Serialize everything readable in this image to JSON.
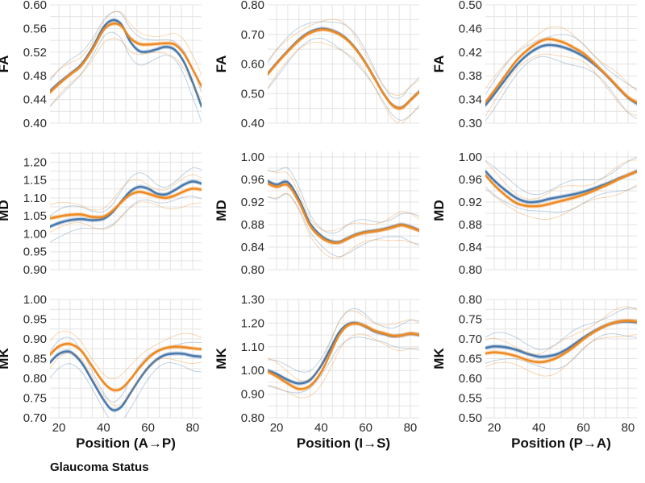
{
  "legend": {
    "title": "Glaucoma Status"
  },
  "colors": {
    "series_a": "#4a7aad",
    "series_b": "#ef8a22",
    "grid": "#e3e3e3"
  },
  "chart_data": [
    {
      "type": "line",
      "ylabel": "FA",
      "xlabel": "",
      "ylim": [
        0.4,
        0.6
      ],
      "yticks": [
        "0.40",
        "0.44",
        "0.48",
        "0.52",
        "0.56",
        "0.60"
      ],
      "xlim": [
        16,
        84
      ],
      "x": [
        16,
        20,
        25,
        30,
        35,
        40,
        44,
        48,
        52,
        56,
        60,
        64,
        68,
        72,
        76,
        80,
        84
      ],
      "series": [
        {
          "values": [
            0.454,
            0.468,
            0.483,
            0.499,
            0.527,
            0.562,
            0.574,
            0.567,
            0.538,
            0.522,
            0.521,
            0.525,
            0.529,
            0.524,
            0.504,
            0.469,
            0.428
          ]
        },
        {
          "values": [
            0.452,
            0.466,
            0.482,
            0.497,
            0.524,
            0.557,
            0.568,
            0.564,
            0.544,
            0.534,
            0.533,
            0.534,
            0.535,
            0.533,
            0.518,
            0.491,
            0.462
          ]
        }
      ]
    },
    {
      "type": "line",
      "ylabel": "FA",
      "xlabel": "",
      "ylim": [
        0.4,
        0.8
      ],
      "yticks": [
        "0.40",
        "0.50",
        "0.60",
        "0.70",
        "0.80"
      ],
      "xlim": [
        16,
        84
      ],
      "x": [
        16,
        20,
        25,
        30,
        35,
        40,
        44,
        48,
        52,
        56,
        60,
        64,
        68,
        72,
        76,
        80,
        84
      ],
      "series": [
        {
          "values": [
            0.567,
            0.603,
            0.644,
            0.682,
            0.708,
            0.719,
            0.715,
            0.703,
            0.681,
            0.647,
            0.603,
            0.552,
            0.5,
            0.461,
            0.452,
            0.478,
            0.507
          ]
        },
        {
          "values": [
            0.565,
            0.601,
            0.642,
            0.679,
            0.705,
            0.716,
            0.713,
            0.701,
            0.679,
            0.645,
            0.601,
            0.55,
            0.499,
            0.46,
            0.451,
            0.477,
            0.506
          ]
        }
      ]
    },
    {
      "type": "line",
      "ylabel": "FA",
      "xlabel": "",
      "ylim": [
        0.3,
        0.5
      ],
      "yticks": [
        "0.30",
        "0.34",
        "0.38",
        "0.42",
        "0.46",
        "0.50"
      ],
      "xlim": [
        16,
        84
      ],
      "x": [
        16,
        20,
        25,
        30,
        35,
        40,
        44,
        48,
        52,
        56,
        60,
        64,
        68,
        72,
        76,
        80,
        84
      ],
      "series": [
        {
          "values": [
            0.33,
            0.349,
            0.374,
            0.398,
            0.416,
            0.428,
            0.432,
            0.431,
            0.427,
            0.421,
            0.413,
            0.402,
            0.389,
            0.374,
            0.358,
            0.343,
            0.333
          ]
        },
        {
          "values": [
            0.335,
            0.355,
            0.381,
            0.406,
            0.424,
            0.437,
            0.442,
            0.44,
            0.435,
            0.427,
            0.418,
            0.405,
            0.39,
            0.375,
            0.359,
            0.344,
            0.335
          ]
        }
      ]
    },
    {
      "type": "line",
      "ylabel": "MD",
      "xlabel": "",
      "ylim": [
        0.9,
        1.23
      ],
      "yticks": [
        "0.90",
        "0.95",
        "1.00",
        "1.05",
        "1.10",
        "1.15",
        "1.20"
      ],
      "xlim": [
        16,
        84
      ],
      "x": [
        16,
        20,
        25,
        30,
        35,
        40,
        44,
        48,
        52,
        56,
        60,
        64,
        68,
        72,
        76,
        80,
        84
      ],
      "series": [
        {
          "values": [
            1.02,
            1.03,
            1.038,
            1.041,
            1.038,
            1.042,
            1.06,
            1.09,
            1.118,
            1.131,
            1.126,
            1.112,
            1.11,
            1.122,
            1.137,
            1.146,
            1.14
          ]
        },
        {
          "values": [
            1.043,
            1.048,
            1.053,
            1.054,
            1.047,
            1.048,
            1.064,
            1.088,
            1.109,
            1.117,
            1.112,
            1.104,
            1.1,
            1.107,
            1.118,
            1.126,
            1.123
          ]
        }
      ]
    },
    {
      "type": "line",
      "ylabel": "MD",
      "xlabel": "",
      "ylim": [
        0.8,
        1.01
      ],
      "yticks": [
        "0.80",
        "0.84",
        "0.88",
        "0.92",
        "0.96",
        "1.00"
      ],
      "xlim": [
        16,
        84
      ],
      "x": [
        16,
        20,
        25,
        30,
        35,
        40,
        44,
        48,
        52,
        56,
        60,
        64,
        68,
        72,
        76,
        80,
        84
      ],
      "series": [
        {
          "values": [
            0.957,
            0.951,
            0.955,
            0.925,
            0.882,
            0.86,
            0.851,
            0.849,
            0.856,
            0.863,
            0.867,
            0.869,
            0.872,
            0.876,
            0.88,
            0.876,
            0.87
          ]
        },
        {
          "values": [
            0.953,
            0.947,
            0.95,
            0.92,
            0.878,
            0.857,
            0.849,
            0.848,
            0.855,
            0.862,
            0.866,
            0.868,
            0.871,
            0.875,
            0.879,
            0.875,
            0.869
          ]
        }
      ]
    },
    {
      "type": "line",
      "ylabel": "MD",
      "xlabel": "",
      "ylim": [
        0.8,
        1.01
      ],
      "yticks": [
        "0.80",
        "0.84",
        "0.88",
        "0.92",
        "0.96",
        "1.00"
      ],
      "xlim": [
        16,
        84
      ],
      "x": [
        16,
        20,
        25,
        30,
        35,
        40,
        44,
        48,
        52,
        56,
        60,
        64,
        68,
        72,
        76,
        80,
        84
      ],
      "series": [
        {
          "values": [
            0.975,
            0.958,
            0.941,
            0.927,
            0.92,
            0.921,
            0.925,
            0.928,
            0.931,
            0.934,
            0.938,
            0.943,
            0.949,
            0.955,
            0.962,
            0.968,
            0.975
          ]
        },
        {
          "values": [
            0.968,
            0.95,
            0.932,
            0.918,
            0.913,
            0.913,
            0.916,
            0.92,
            0.924,
            0.928,
            0.933,
            0.939,
            0.946,
            0.953,
            0.961,
            0.968,
            0.974
          ]
        }
      ]
    },
    {
      "type": "line",
      "ylabel": "MK",
      "xlabel": "Position (A→P)",
      "ylim": [
        0.7,
        1.0
      ],
      "yticks": [
        "0.70",
        "0.75",
        "0.80",
        "0.85",
        "0.90",
        "0.95",
        "1.00"
      ],
      "xlim": [
        16,
        84
      ],
      "x": [
        16,
        20,
        25,
        30,
        35,
        40,
        44,
        48,
        52,
        56,
        60,
        64,
        68,
        72,
        76,
        80,
        84
      ],
      "xticks": [
        "20",
        "40",
        "60",
        "80"
      ],
      "series": [
        {
          "values": [
            0.84,
            0.862,
            0.867,
            0.841,
            0.794,
            0.746,
            0.72,
            0.728,
            0.762,
            0.797,
            0.827,
            0.848,
            0.86,
            0.863,
            0.862,
            0.857,
            0.855
          ]
        },
        {
          "values": [
            0.86,
            0.881,
            0.887,
            0.87,
            0.83,
            0.79,
            0.771,
            0.774,
            0.797,
            0.826,
            0.851,
            0.868,
            0.877,
            0.88,
            0.879,
            0.876,
            0.874
          ]
        }
      ]
    },
    {
      "type": "line",
      "ylabel": "MK",
      "xlabel": "Position (I→S)",
      "ylim": [
        0.8,
        1.3
      ],
      "yticks": [
        "0.80",
        "0.90",
        "1.00",
        "1.10",
        "1.20",
        "1.30"
      ],
      "xlim": [
        16,
        84
      ],
      "x": [
        16,
        20,
        25,
        30,
        35,
        40,
        44,
        48,
        52,
        56,
        60,
        64,
        68,
        72,
        76,
        80,
        84
      ],
      "xticks": [
        "20",
        "40",
        "60",
        "80"
      ],
      "series": [
        {
          "values": [
            1.0,
            0.985,
            0.96,
            0.945,
            0.96,
            1.02,
            1.09,
            1.16,
            1.195,
            1.2,
            1.185,
            1.165,
            1.155,
            1.145,
            1.148,
            1.155,
            1.15
          ]
        },
        {
          "values": [
            0.995,
            0.975,
            0.945,
            0.922,
            0.935,
            0.993,
            1.07,
            1.148,
            1.19,
            1.198,
            1.187,
            1.168,
            1.157,
            1.147,
            1.148,
            1.156,
            1.151
          ]
        }
      ]
    },
    {
      "type": "line",
      "ylabel": "MK",
      "xlabel": "Position (P→A)",
      "ylim": [
        0.5,
        0.8
      ],
      "yticks": [
        "0.50",
        "0.55",
        "0.60",
        "0.65",
        "0.70",
        "0.75",
        "0.80"
      ],
      "xlim": [
        16,
        84
      ],
      "x": [
        16,
        20,
        25,
        30,
        35,
        40,
        44,
        48,
        52,
        56,
        60,
        64,
        68,
        72,
        76,
        80,
        84
      ],
      "xticks": [
        "20",
        "40",
        "60",
        "80"
      ],
      "series": [
        {
          "values": [
            0.677,
            0.681,
            0.679,
            0.672,
            0.662,
            0.655,
            0.656,
            0.661,
            0.672,
            0.687,
            0.703,
            0.717,
            0.729,
            0.738,
            0.743,
            0.744,
            0.742
          ]
        },
        {
          "values": [
            0.663,
            0.666,
            0.663,
            0.656,
            0.646,
            0.641,
            0.644,
            0.652,
            0.665,
            0.681,
            0.699,
            0.715,
            0.728,
            0.738,
            0.744,
            0.746,
            0.744
          ]
        }
      ]
    }
  ]
}
